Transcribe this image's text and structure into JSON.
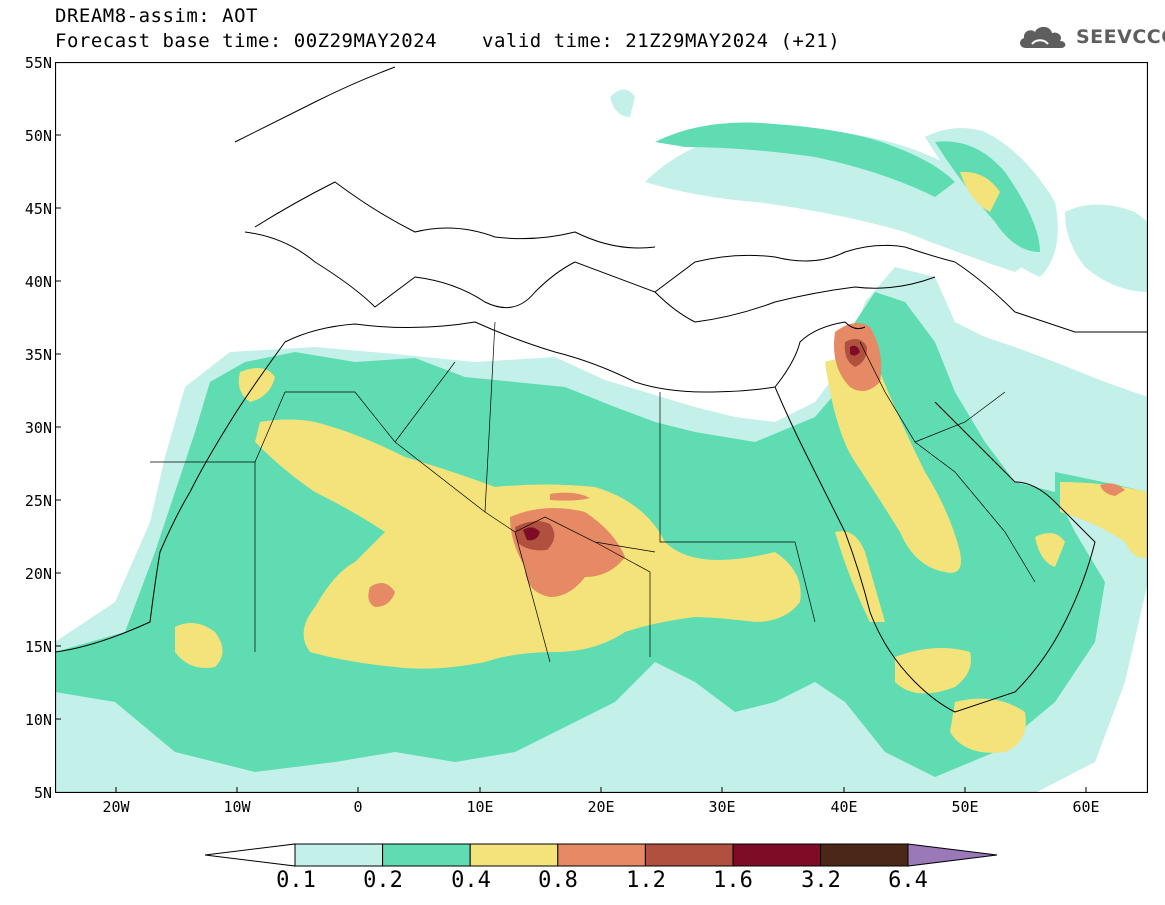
{
  "header": {
    "title": "DREAM8-assim: AOT",
    "base_time": "Forecast base time: 00Z29MAY2024",
    "valid_time": "valid time: 21Z29MAY2024 (+21)"
  },
  "logo": {
    "text": "SEEVCCC",
    "icon": "cloud-icon"
  },
  "axes": {
    "lat_labels": [
      "55N",
      "50N",
      "45N",
      "40N",
      "35N",
      "30N",
      "25N",
      "20N",
      "15N",
      "10N",
      "5N"
    ],
    "lon_labels": [
      "20W",
      "10W",
      "0",
      "10E",
      "20E",
      "30E",
      "40E",
      "50E",
      "60E"
    ],
    "lat_range": [
      5,
      55
    ],
    "lon_range": [
      -25,
      65
    ]
  },
  "legend": {
    "levels": [
      "0.1",
      "0.2",
      "0.4",
      "0.8",
      "1.2",
      "1.6",
      "3.2",
      "6.4"
    ],
    "colors": [
      "#c4f0ea",
      "#5fdcb2",
      "#f4e37a",
      "#e58a64",
      "#b0503e",
      "#7f0c26",
      "#4a2716",
      "#9b78b8"
    ]
  },
  "colors": {
    "aot_0_1": "#c4f0ea",
    "aot_0_2": "#5fdcb2",
    "aot_0_4": "#f4e37a",
    "aot_0_8": "#e58a64",
    "aot_1_2": "#b0503e",
    "aot_1_6": "#7f0c26"
  }
}
